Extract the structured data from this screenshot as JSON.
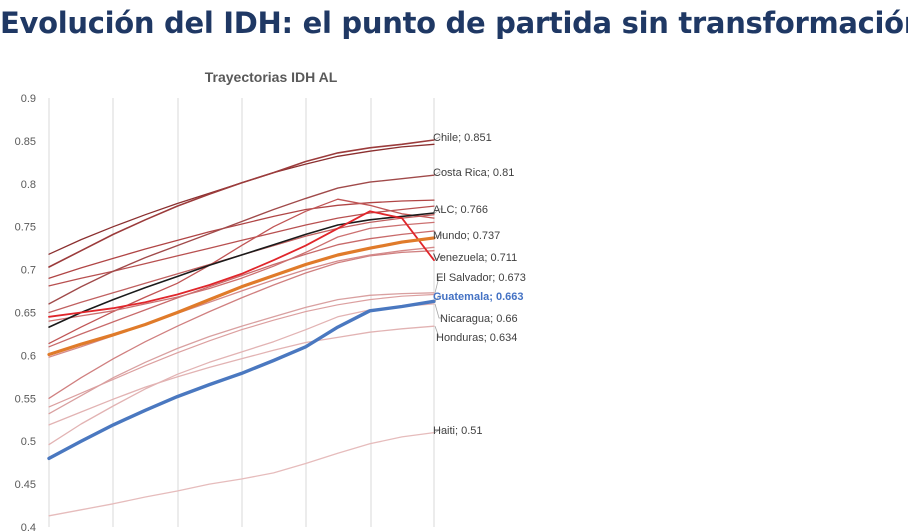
{
  "slide": {
    "title": "Evolución del IDH: el punto de partida sin transformación"
  },
  "chart_data": {
    "type": "line",
    "title": "Trayectorias IDH AL",
    "xlabel": "",
    "ylabel": "",
    "ylim": [
      0.4,
      0.9
    ],
    "yticks": [
      "0.4",
      "0.45",
      "0.5",
      "0.55",
      "0.6",
      "0.65",
      "0.7",
      "0.75",
      "0.8",
      "0.85",
      "0.9"
    ],
    "grid": "vertical",
    "x_points": 13,
    "series": [
      {
        "name": "Chile",
        "label": "Chile; 0.851",
        "role": "labeled",
        "color": "#9b3b3b",
        "width": 1.6,
        "values": [
          0.703,
          0.722,
          0.741,
          0.758,
          0.774,
          0.788,
          0.801,
          0.813,
          0.826,
          0.836,
          0.842,
          0.846,
          0.851
        ]
      },
      {
        "name": "Costa Rica",
        "label": "Costa Rica; 0.81",
        "role": "labeled",
        "color": "#a04a4a",
        "width": 1.4,
        "values": [
          0.66,
          0.68,
          0.698,
          0.714,
          0.728,
          0.742,
          0.756,
          0.77,
          0.783,
          0.795,
          0.802,
          0.806,
          0.81
        ]
      },
      {
        "name": "ALC",
        "label": "ALC; 0.766",
        "role": "labeled",
        "color": "#1a1a1a",
        "width": 1.6,
        "values": [
          0.633,
          0.65,
          0.665,
          0.679,
          0.692,
          0.705,
          0.717,
          0.729,
          0.741,
          0.752,
          0.758,
          0.762,
          0.766
        ]
      },
      {
        "name": "Mundo",
        "label": "Mundo; 0.737",
        "role": "labeled",
        "color": "#e07b2a",
        "width": 3.2,
        "values": [
          0.601,
          0.613,
          0.624,
          0.636,
          0.65,
          0.665,
          0.68,
          0.693,
          0.706,
          0.717,
          0.725,
          0.732,
          0.737
        ]
      },
      {
        "name": "Venezuela",
        "label": "Venezuela; 0.711",
        "role": "labeled",
        "color": "#e0262b",
        "width": 1.8,
        "values": [
          0.645,
          0.65,
          0.655,
          0.662,
          0.671,
          0.682,
          0.695,
          0.711,
          0.728,
          0.748,
          0.768,
          0.76,
          0.711
        ]
      },
      {
        "name": "El Salvador",
        "label": "El Salvador; 0.673",
        "role": "labeled",
        "color": "#d9a0a0",
        "width": 1.3,
        "values": [
          0.532,
          0.553,
          0.574,
          0.592,
          0.608,
          0.622,
          0.634,
          0.645,
          0.656,
          0.665,
          0.67,
          0.672,
          0.673
        ]
      },
      {
        "name": "Guatemala",
        "label": "Guatemala; 0.663",
        "role": "highlight",
        "color": "#4a78c0",
        "width": 3.4,
        "values": [
          0.48,
          0.5,
          0.519,
          0.536,
          0.552,
          0.566,
          0.579,
          0.594,
          0.61,
          0.633,
          0.652,
          0.657,
          0.663
        ]
      },
      {
        "name": "Nicaragua",
        "label": "Nicaragua; 0.66",
        "role": "labeled",
        "color": "#e2b3b3",
        "width": 1.3,
        "values": [
          0.496,
          0.52,
          0.541,
          0.561,
          0.578,
          0.592,
          0.604,
          0.616,
          0.63,
          0.645,
          0.653,
          0.657,
          0.66
        ]
      },
      {
        "name": "Honduras",
        "label": "Honduras; 0.634",
        "role": "labeled",
        "color": "#e2b3b3",
        "width": 1.3,
        "values": [
          0.519,
          0.534,
          0.549,
          0.563,
          0.575,
          0.586,
          0.596,
          0.606,
          0.615,
          0.621,
          0.627,
          0.631,
          0.634
        ]
      },
      {
        "name": "Haiti",
        "label": "Haiti; 0.51",
        "role": "labeled",
        "color": "#e6bcbc",
        "width": 1.3,
        "values": [
          0.413,
          0.42,
          0.427,
          0.435,
          0.442,
          0.45,
          0.456,
          0.463,
          0.474,
          0.486,
          0.497,
          0.505,
          0.51
        ]
      },
      {
        "name": "",
        "role": "other",
        "color": "#8b2f2f",
        "width": 1.3,
        "values": [
          0.718,
          0.735,
          0.75,
          0.764,
          0.777,
          0.789,
          0.801,
          0.813,
          0.823,
          0.832,
          0.838,
          0.843,
          0.846
        ]
      },
      {
        "name": "",
        "role": "other",
        "color": "#b04545",
        "width": 1.3,
        "values": [
          0.69,
          0.702,
          0.713,
          0.724,
          0.734,
          0.744,
          0.753,
          0.762,
          0.77,
          0.775,
          0.778,
          0.78,
          0.781
        ]
      },
      {
        "name": "",
        "role": "other",
        "color": "#b85050",
        "width": 1.3,
        "values": [
          0.681,
          0.69,
          0.698,
          0.707,
          0.716,
          0.725,
          0.734,
          0.743,
          0.752,
          0.76,
          0.766,
          0.77,
          0.774
        ]
      },
      {
        "name": "",
        "role": "other",
        "color": "#c06060",
        "width": 1.3,
        "values": [
          0.65,
          0.662,
          0.673,
          0.684,
          0.695,
          0.706,
          0.717,
          0.728,
          0.739,
          0.748,
          0.755,
          0.76,
          0.764
        ]
      },
      {
        "name": "",
        "role": "other",
        "color": "#c05555",
        "width": 1.3,
        "values": [
          0.614,
          0.633,
          0.651,
          0.668,
          0.684,
          0.705,
          0.728,
          0.75,
          0.768,
          0.782,
          0.775,
          0.765,
          0.76
        ]
      },
      {
        "name": "",
        "role": "other",
        "color": "#c86a6a",
        "width": 1.3,
        "values": [
          0.61,
          0.625,
          0.639,
          0.653,
          0.667,
          0.68,
          0.693,
          0.706,
          0.718,
          0.729,
          0.736,
          0.741,
          0.745
        ]
      },
      {
        "name": "",
        "role": "other",
        "color": "#cc7070",
        "width": 1.3,
        "values": [
          0.64,
          0.646,
          0.652,
          0.66,
          0.668,
          0.678,
          0.69,
          0.704,
          0.72,
          0.738,
          0.748,
          0.752,
          0.755
        ]
      },
      {
        "name": "",
        "role": "other",
        "color": "#d08080",
        "width": 1.3,
        "values": [
          0.55,
          0.574,
          0.596,
          0.616,
          0.634,
          0.651,
          0.667,
          0.682,
          0.696,
          0.708,
          0.716,
          0.72,
          0.722
        ]
      },
      {
        "name": "",
        "role": "other",
        "color": "#d48a8a",
        "width": 1.3,
        "values": [
          0.598,
          0.61,
          0.623,
          0.636,
          0.649,
          0.662,
          0.675,
          0.688,
          0.7,
          0.71,
          0.717,
          0.722,
          0.726
        ]
      },
      {
        "name": "",
        "role": "other",
        "color": "#dca0a0",
        "width": 1.2,
        "values": [
          0.54,
          0.556,
          0.572,
          0.588,
          0.603,
          0.617,
          0.63,
          0.641,
          0.651,
          0.659,
          0.665,
          0.669,
          0.671
        ]
      }
    ]
  }
}
